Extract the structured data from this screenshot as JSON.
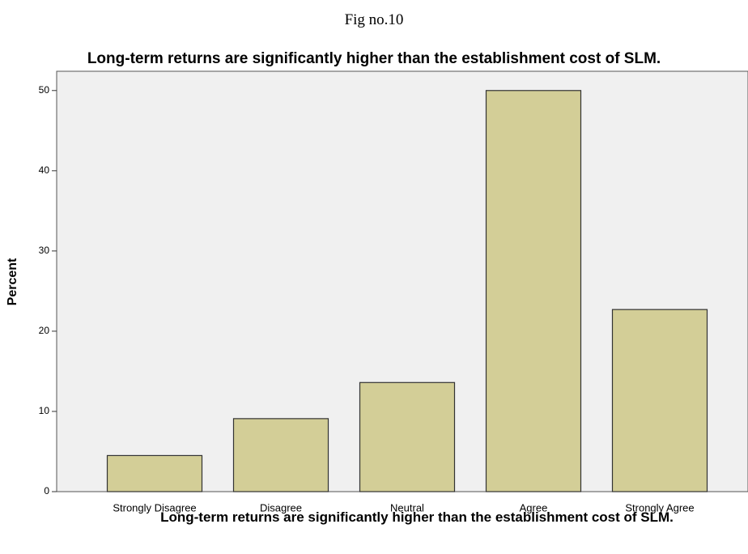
{
  "caption": "Fig no.10",
  "chart_data": {
    "type": "bar",
    "title": "Long-term returns are significantly higher than the establishment cost of SLM.",
    "x_label": "Long-term returns are significantly higher than the establishment cost of SLM.",
    "y_label": "Percent",
    "categories": [
      "Strongly Disagree",
      "Disagree",
      "Neutral",
      "Agree",
      "Strongly Agree"
    ],
    "values": [
      4.5,
      9.1,
      13.6,
      50.0,
      22.7
    ],
    "color": "#d3ce97",
    "ylim": [
      0,
      52.4
    ],
    "yticks": [
      0,
      10,
      20,
      30,
      40,
      50
    ],
    "grid": false
  }
}
